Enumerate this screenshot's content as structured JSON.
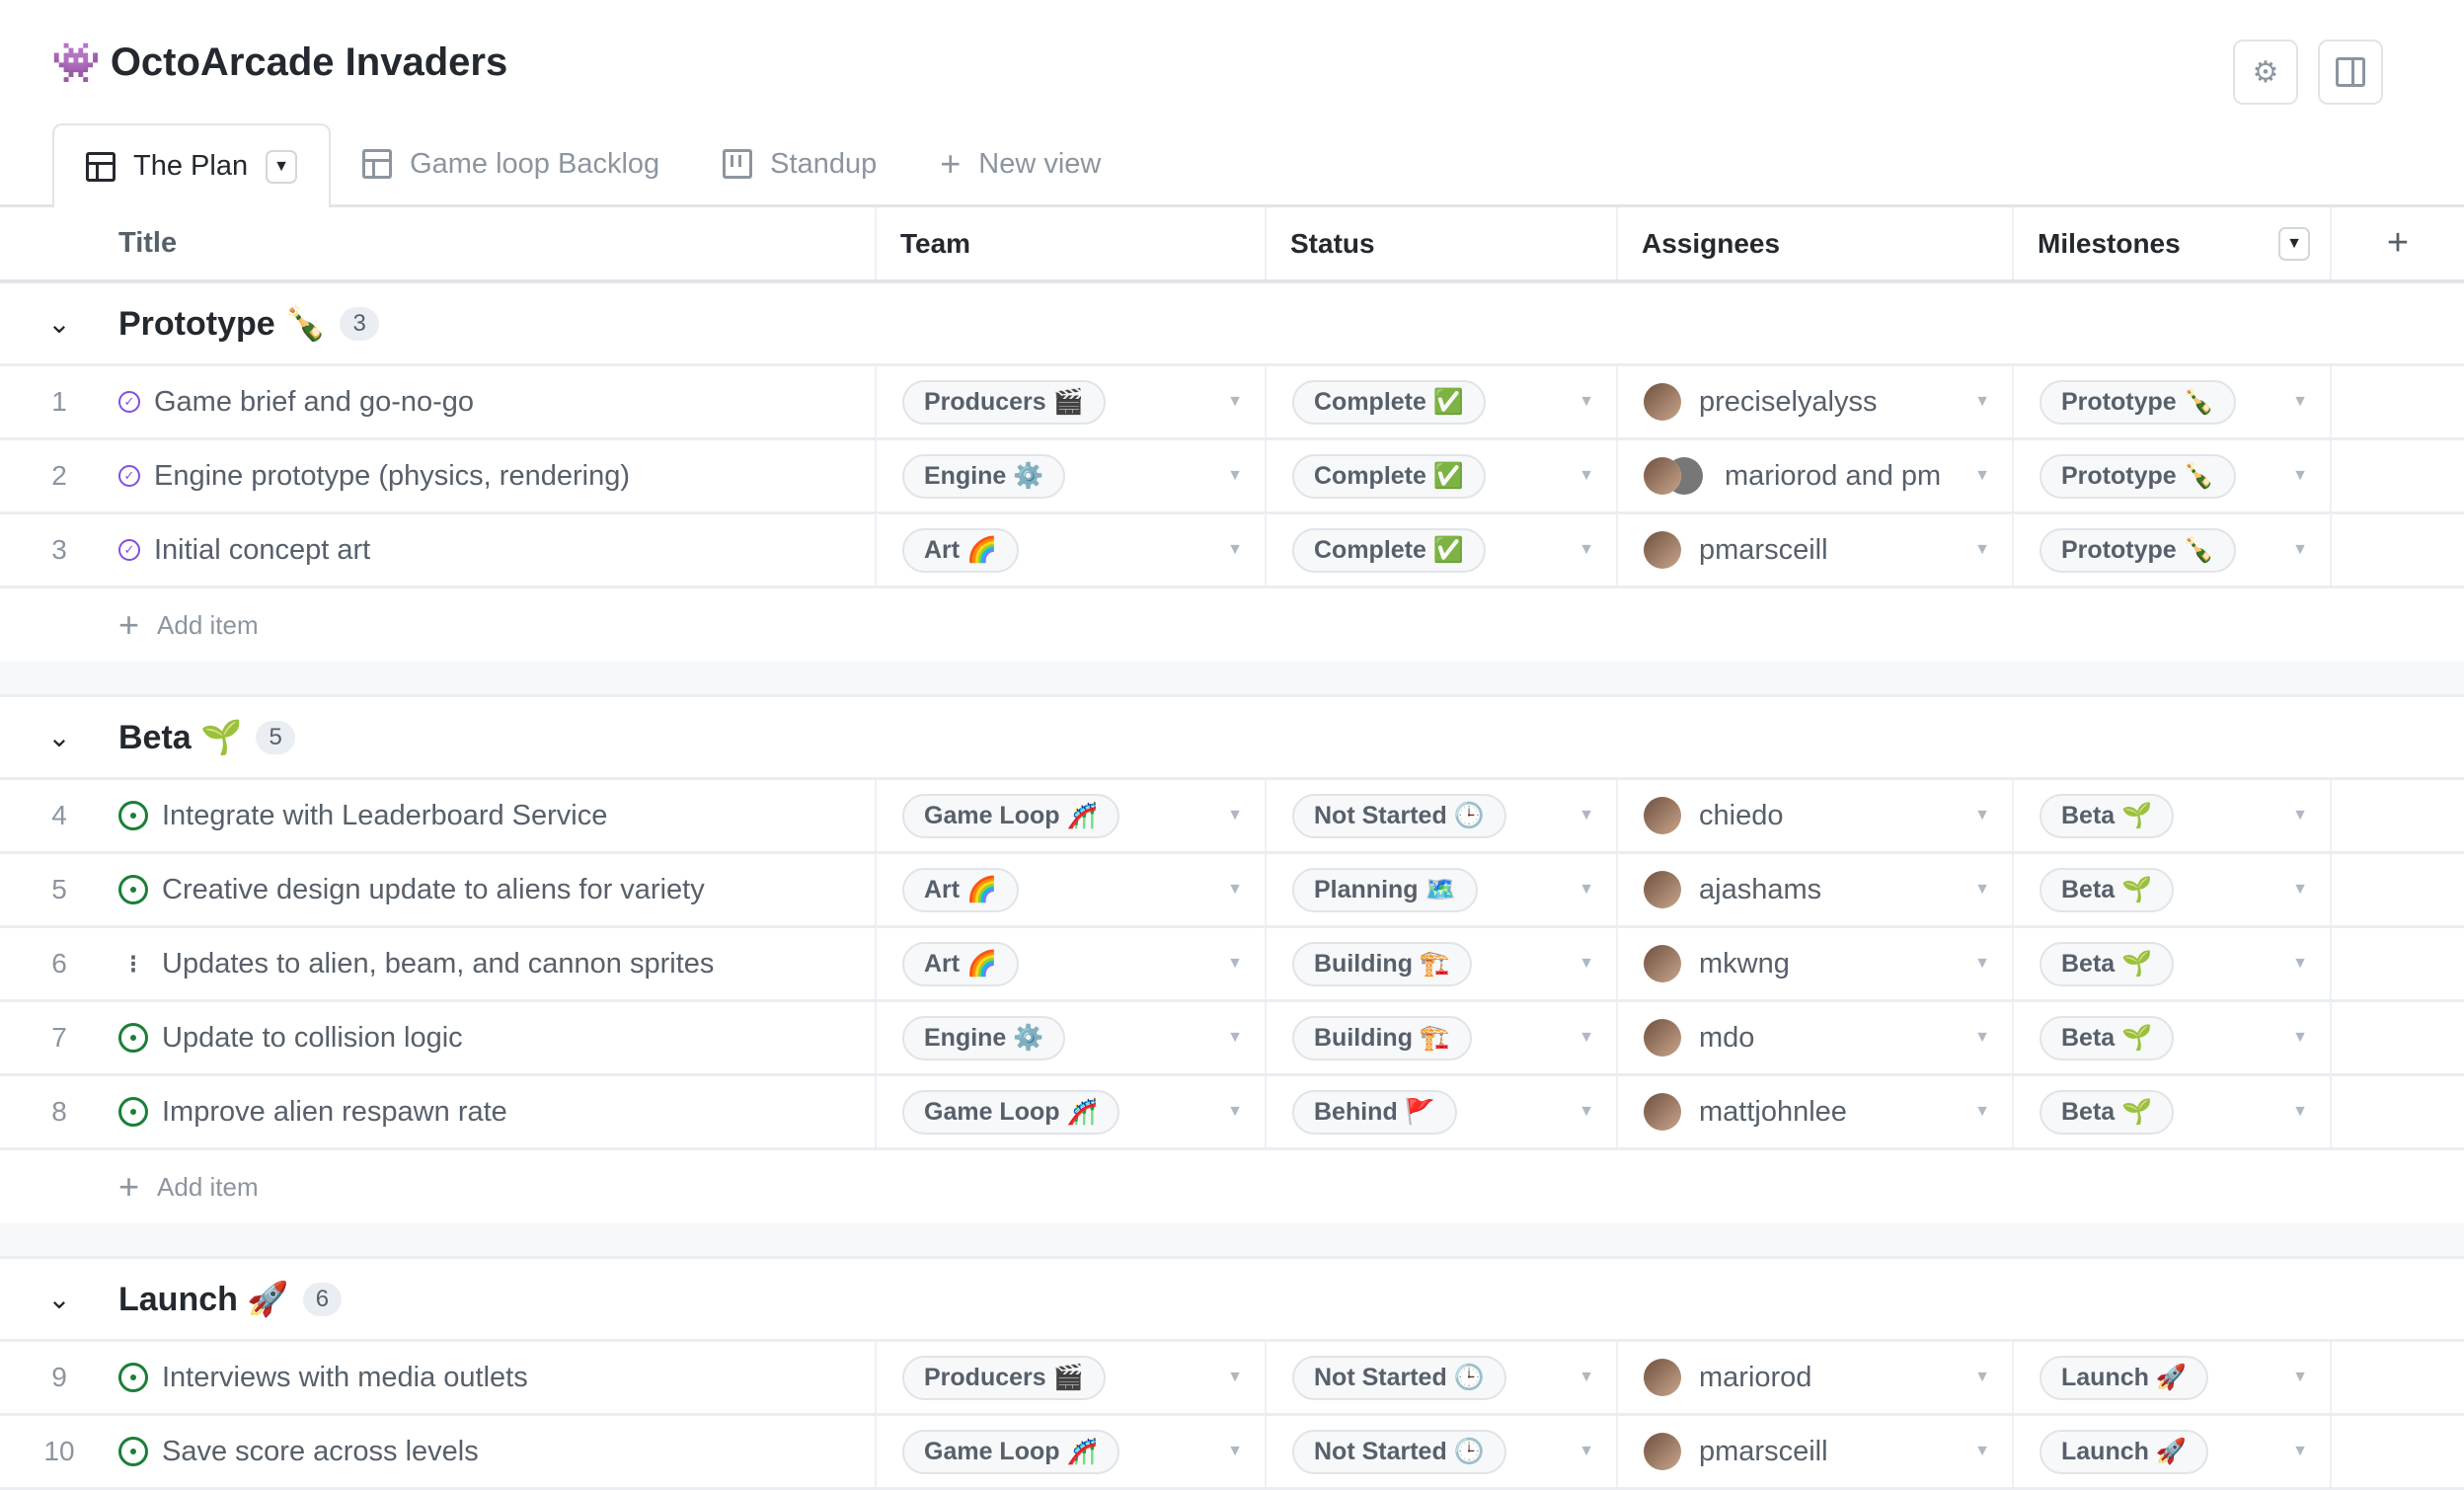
{
  "app": {
    "title": "OctoArcade Invaders",
    "title_icon": "👾",
    "icons": [
      "gear-icon",
      "sidebar-panel-icon"
    ]
  },
  "tabs": [
    {
      "label": "The Plan",
      "icon": "table-icon",
      "active": true
    },
    {
      "label": "Game loop Backlog",
      "icon": "table-icon"
    },
    {
      "label": "Standup",
      "icon": "board-icon"
    },
    {
      "label": "New view",
      "icon": "plus-icon"
    }
  ],
  "columns": {
    "title": "Title",
    "team": "Team",
    "status": "Status",
    "assignees": "Assignees",
    "milestones": "Milestones"
  },
  "add_item_label": "Add item",
  "colors": {
    "done": "#8250df",
    "open": "#1a7f37"
  },
  "groups": [
    {
      "name": "Prototype 🍾",
      "count": "3",
      "items": [
        {
          "num": "1",
          "state": "done",
          "title": "Game brief and go-no-go",
          "team": "Producers 🎬",
          "status": "Complete ✅",
          "assignees": "preciselyalyss",
          "multi": false,
          "milestone": "Prototype 🍾"
        },
        {
          "num": "2",
          "state": "done",
          "title": "Engine prototype (physics, rendering)",
          "team": "Engine ⚙️",
          "status": "Complete ✅",
          "assignees": "mariorod and pm",
          "multi": true,
          "milestone": "Prototype 🍾"
        },
        {
          "num": "3",
          "state": "done",
          "title": "Initial concept art",
          "team": "Art 🌈",
          "status": "Complete ✅",
          "assignees": "pmarsceill",
          "multi": false,
          "milestone": "Prototype 🍾"
        }
      ]
    },
    {
      "name": "Beta 🌱",
      "count": "5",
      "items": [
        {
          "num": "4",
          "state": "open",
          "title": "Integrate with Leaderboard Service",
          "team": "Game Loop 🎢",
          "status": "Not Started 🕒",
          "assignees": "chiedo",
          "multi": false,
          "milestone": "Beta 🌱"
        },
        {
          "num": "5",
          "state": "open",
          "title": "Creative design update to aliens for variety",
          "team": "Art 🌈",
          "status": "Planning 🗺️",
          "assignees": "ajashams",
          "multi": false,
          "milestone": "Beta 🌱"
        },
        {
          "num": "6",
          "state": "pr",
          "title": "Updates to alien, beam, and cannon sprites",
          "team": "Art 🌈",
          "status": "Building 🏗️",
          "assignees": "mkwng",
          "multi": false,
          "milestone": "Beta 🌱"
        },
        {
          "num": "7",
          "state": "open",
          "title": "Update to collision logic",
          "team": "Engine ⚙️",
          "status": "Building 🏗️",
          "assignees": "mdo",
          "multi": false,
          "milestone": "Beta 🌱"
        },
        {
          "num": "8",
          "state": "open",
          "title": "Improve alien respawn rate",
          "team": "Game Loop 🎢",
          "status": "Behind 🚩",
          "assignees": "mattjohnlee",
          "multi": false,
          "milestone": "Beta 🌱"
        }
      ]
    },
    {
      "name": "Launch 🚀",
      "count": "6",
      "items": [
        {
          "num": "9",
          "state": "open",
          "title": "Interviews with media outlets",
          "team": "Producers 🎬",
          "status": "Not Started 🕒",
          "assignees": "mariorod",
          "multi": false,
          "milestone": "Launch 🚀"
        },
        {
          "num": "10",
          "state": "open",
          "title": "Save score across levels",
          "team": "Game Loop 🎢",
          "status": "Not Started 🕒",
          "assignees": "pmarsceill",
          "multi": false,
          "milestone": "Launch 🚀"
        }
      ]
    }
  ]
}
